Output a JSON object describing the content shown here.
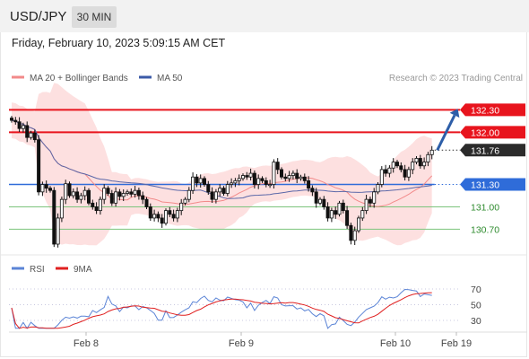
{
  "header": {
    "symbol": "USD/JPY",
    "timeframe": "30 MIN",
    "datetime": "Friday, February 10, 2023 5:09:15 AM CET"
  },
  "credit": "Research © 2023 Trading Central",
  "colors": {
    "resistance": "#e8141d",
    "pivot": "#2f6cd9",
    "support": "#7cc47c",
    "last_price": "#2b2b2b",
    "candle": "#111111",
    "ma20": "#f28a8a",
    "bollinger_fill": "#fde0e0",
    "ma50": "#5a67a8",
    "rsi": "#5b84d6",
    "rsi_ma": "#e02020",
    "arrow": "#2d5ea8"
  },
  "chart_data": [
    {
      "type": "candlestick",
      "legend": [
        {
          "name": "MA 20 + Bollinger Bands",
          "color": "#f28a8a"
        },
        {
          "name": "MA 50",
          "color": "#3b5aa8"
        }
      ],
      "levels": [
        {
          "value": 132.3,
          "label": "132.30",
          "kind": "resistance"
        },
        {
          "value": 132.0,
          "label": "132.00",
          "kind": "resistance"
        },
        {
          "value": 131.76,
          "label": "131.76",
          "kind": "last"
        },
        {
          "value": 131.3,
          "label": "131.30",
          "kind": "pivot"
        },
        {
          "value": 131.0,
          "label": "131.00",
          "kind": "support"
        },
        {
          "value": 130.7,
          "label": "130.70",
          "kind": "support"
        }
      ],
      "x_ticks": [
        "Feb 8",
        "Feb 9",
        "Feb 10",
        "Feb 19"
      ],
      "ylim": [
        130.44,
        132.57
      ],
      "close": [
        132.16,
        132.14,
        132.05,
        132.09,
        131.93,
        131.99,
        131.9,
        131.2,
        131.3,
        131.25,
        131.22,
        130.5,
        130.85,
        131.1,
        131.31,
        131.15,
        131.2,
        131.1,
        131.15,
        131.22,
        131.05,
        131.0,
        130.95,
        131.1,
        131.25,
        131.18,
        131.05,
        131.2,
        131.14,
        131.18,
        131.2,
        131.17,
        131.22,
        131.15,
        131.1,
        131.0,
        130.85,
        130.9,
        130.85,
        130.78,
        130.95,
        130.9,
        130.85,
        130.95,
        131.05,
        131.1,
        131.22,
        131.4,
        131.32,
        131.38,
        131.3,
        131.2,
        131.1,
        131.2,
        131.25,
        131.18,
        131.3,
        131.32,
        131.35,
        131.38,
        131.42,
        131.4,
        131.45,
        131.3,
        131.38,
        131.35,
        131.3,
        131.3,
        131.6,
        131.5,
        131.4,
        131.38,
        131.42,
        131.45,
        131.38,
        131.4,
        131.35,
        131.25,
        131.2,
        131.05,
        131.1,
        131.0,
        130.85,
        130.95,
        130.9,
        131.05,
        130.95,
        130.75,
        130.55,
        130.68,
        130.85,
        130.95,
        131.1,
        131.05,
        131.2,
        131.3,
        131.5,
        131.45,
        131.52,
        131.6,
        131.55,
        131.5,
        131.4,
        131.5,
        131.6,
        131.65,
        131.55,
        131.6,
        131.7,
        131.76
      ]
    },
    {
      "type": "line",
      "title": "RSI",
      "legend": [
        {
          "name": "RSI",
          "color": "#5b84d6"
        },
        {
          "name": "9MA",
          "color": "#e02020"
        }
      ],
      "y_ticks": [
        70,
        50,
        30
      ],
      "rsi_last": 67,
      "rsi_ma_last": 66
    }
  ]
}
